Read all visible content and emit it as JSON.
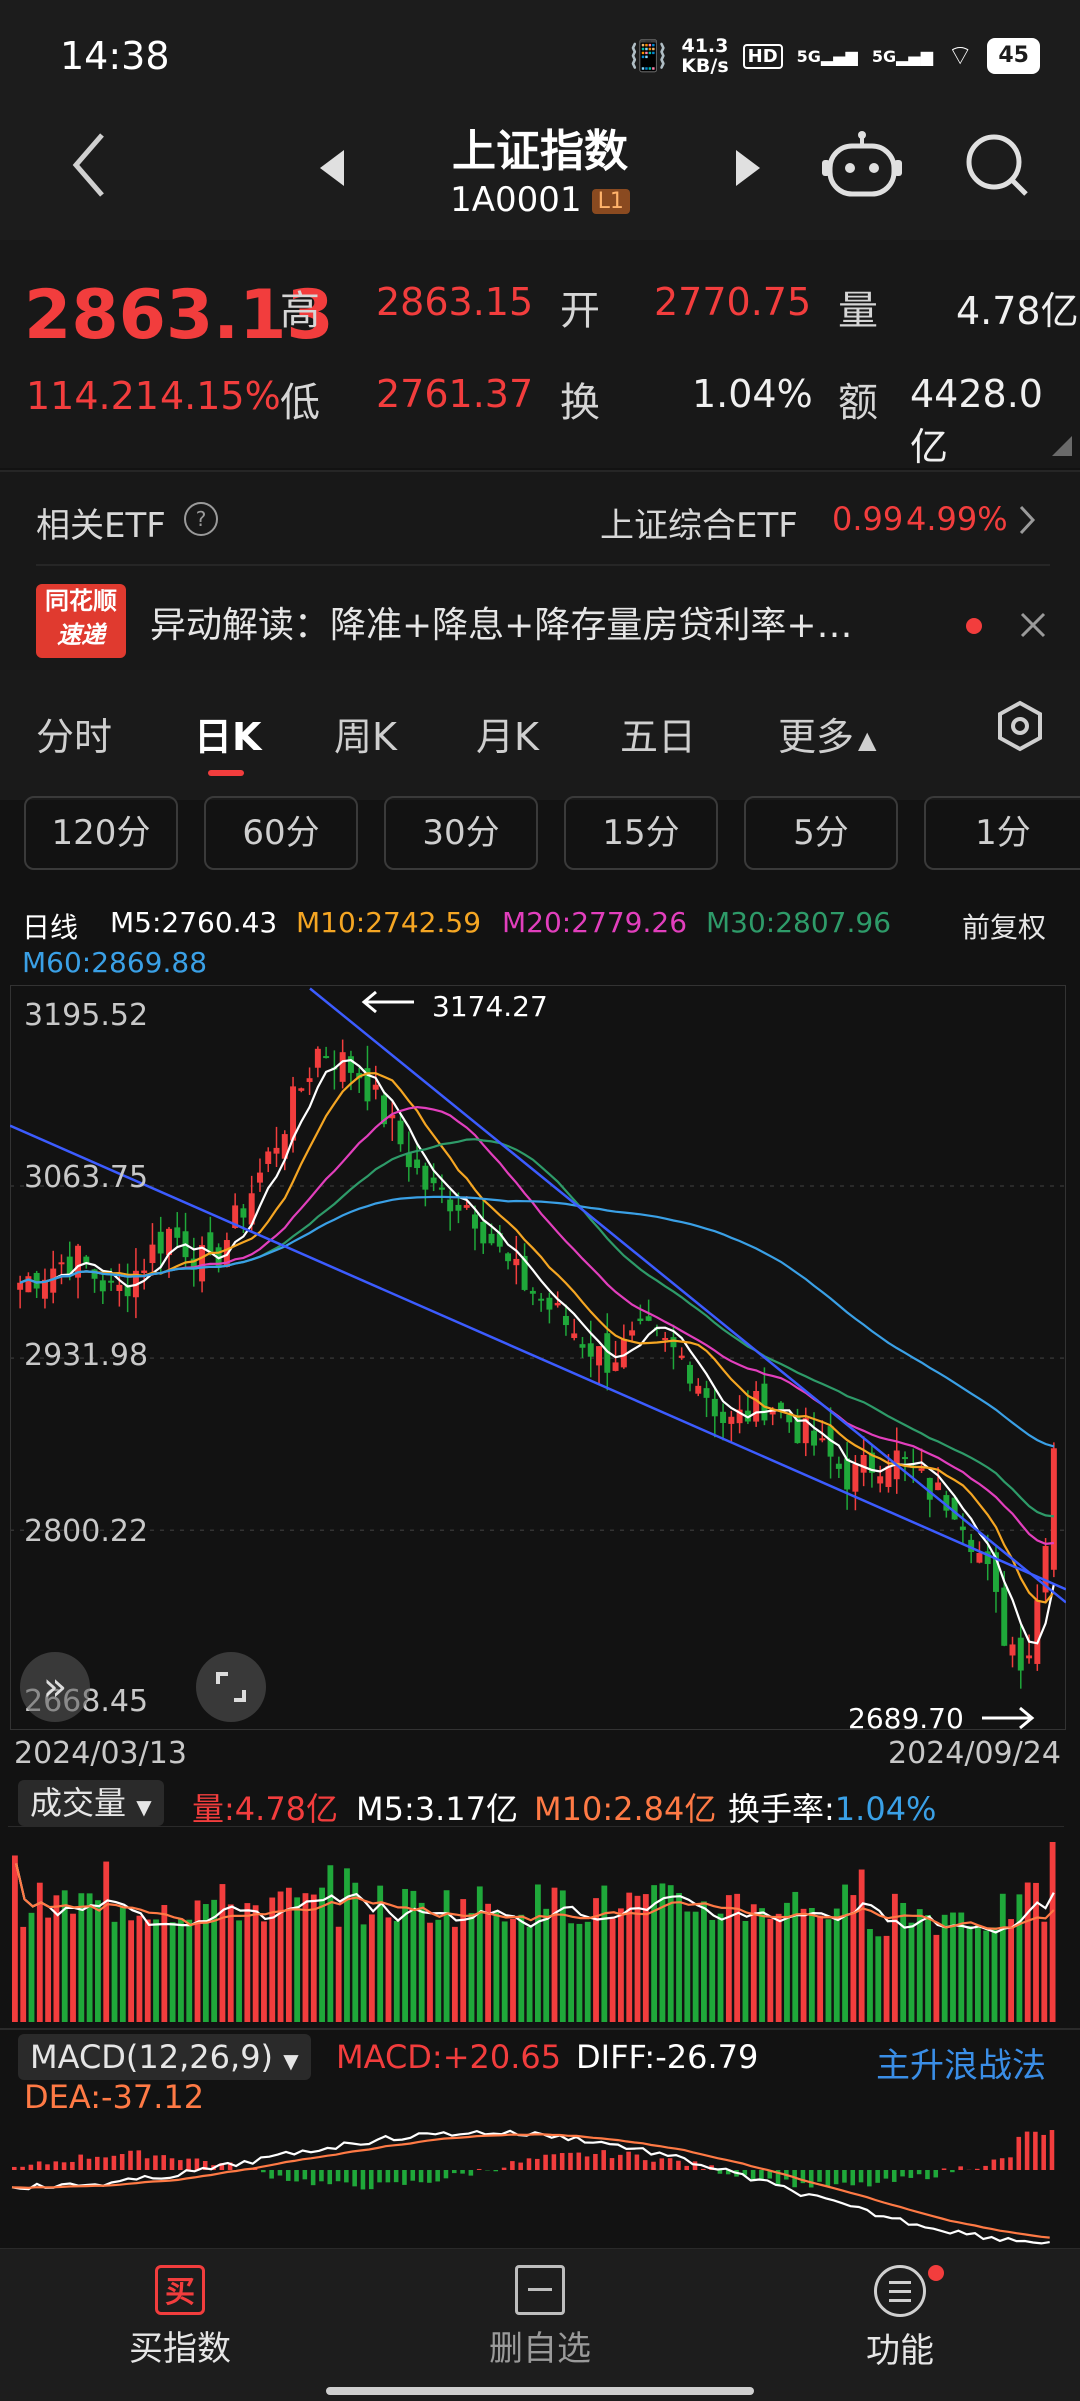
{
  "status_bar": {
    "time": "14:38",
    "net_speed_top": "41.3",
    "net_speed_bottom": "KB/s",
    "hd_label": "HD",
    "sim1": "5G",
    "sim2": "5G",
    "battery": "45"
  },
  "header": {
    "title": "上证指数",
    "code": "1A0001",
    "level": "L1"
  },
  "quote": {
    "price": "2863.13",
    "change": "114.21",
    "change_pct": "4.15%",
    "high_label": "高",
    "high": "2863.15",
    "low_label": "低",
    "low": "2761.37",
    "open_label": "开",
    "open": "2770.75",
    "turnover_label": "换",
    "turnover": "1.04%",
    "volume_label": "量",
    "volume": "4.78亿",
    "amount_label": "额",
    "amount": "4428.0亿"
  },
  "etf": {
    "label": "相关ETF",
    "name": "上证综合ETF",
    "price": "0.99",
    "pct": "4.99%"
  },
  "news": {
    "badge_top": "同花顺",
    "badge_bottom": "速递",
    "text": "异动解读：降准+降息+降存量房贷利率+…"
  },
  "tabs": [
    "分时",
    "日K",
    "周K",
    "月K",
    "五日",
    "更多"
  ],
  "active_tab": "日K",
  "minute_buttons": [
    "120分",
    "60分",
    "30分",
    "15分",
    "5分",
    "1分"
  ],
  "ma_legend": {
    "type": "日线",
    "m5": "M5:2760.43",
    "m10": "M10:2742.59",
    "m20": "M20:2779.26",
    "m30": "M30:2807.96",
    "m60": "M60:2869.88",
    "adjust": "前复权"
  },
  "price_axis": {
    "p1": "3195.52",
    "p2": "3063.75",
    "p3": "2931.98",
    "p4": "2800.22",
    "p5": "2668.45"
  },
  "annotations": {
    "high_marker": "3174.27",
    "low_marker": "2689.70"
  },
  "dates": {
    "start": "2024/03/13",
    "end": "2024/09/24"
  },
  "volume_legend": {
    "selector": "成交量",
    "vol": "量:4.78亿",
    "m5": "M5:3.17亿",
    "m10": "M10:2.84亿",
    "turnover_label": "换手率:",
    "turnover": "1.04%"
  },
  "macd_legend": {
    "selector": "MACD(12,26,9)",
    "macd": "MACD:+20.65",
    "diff": "DIFF:-26.79",
    "dea": "DEA:-37.12",
    "strategy": "主升浪战法"
  },
  "nav": {
    "buy_icon": "买",
    "buy": "买指数",
    "remove": "删自选",
    "func": "功能"
  },
  "colors": {
    "up": "#f23d3d",
    "down": "#1fa83a",
    "m5": "#ffffff",
    "m10": "#f5a623",
    "m20": "#e23fbd",
    "m30": "#2e9b69",
    "m60": "#3aa0e6",
    "trendline": "#3c5cff"
  }
}
